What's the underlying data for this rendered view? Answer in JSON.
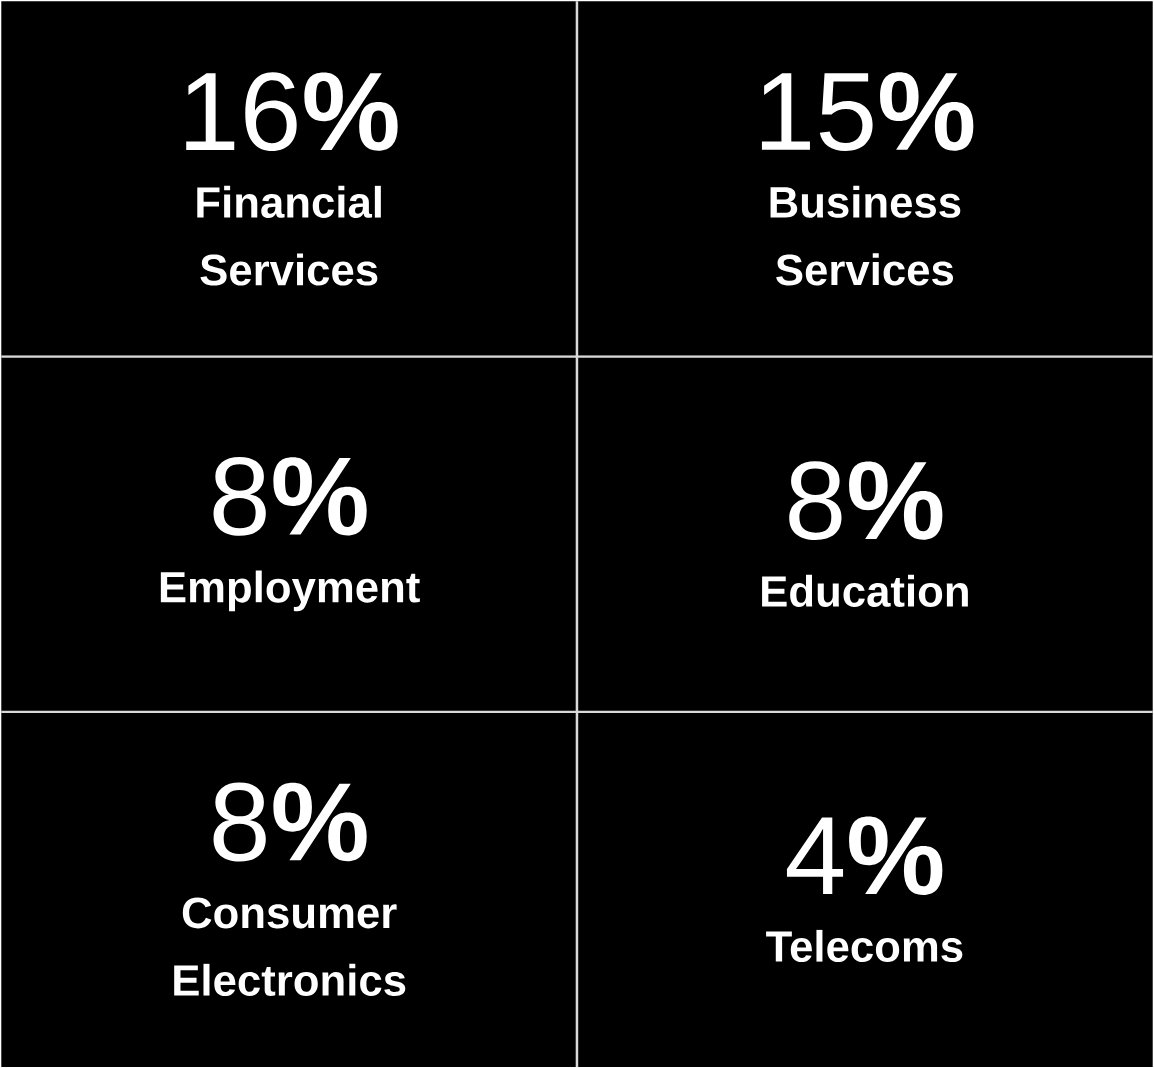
{
  "chart_data": {
    "type": "other",
    "categories": [
      "Financial Services",
      "Business Services",
      "Employment",
      "Education",
      "Consumer Electronics",
      "Telecoms"
    ],
    "values": [
      16,
      15,
      8,
      8,
      8,
      4
    ],
    "value_labels": [
      "16**%**",
      "15**%**",
      "8**%**",
      "8**%**",
      "8**%**",
      "4**%**"
    ]
  }
}
